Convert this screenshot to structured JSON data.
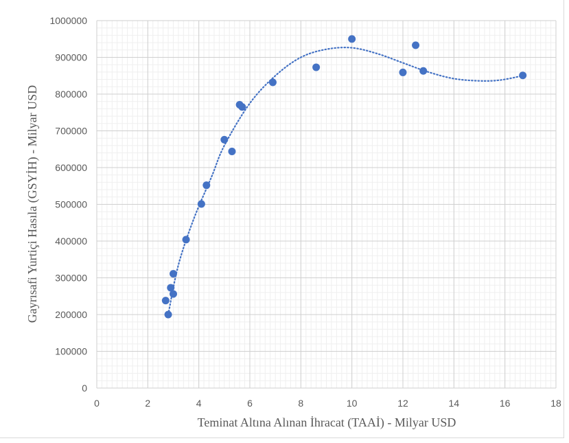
{
  "chart_data": {
    "type": "scatter",
    "xlabel": "Teminat Altına Alınan İhracat (TAAİ) - Milyar USD",
    "ylabel": "Gayrısafi Yurtiçi Hasıla (GSYİH) - Milyar USD",
    "xlim": [
      0,
      18
    ],
    "ylim": [
      0,
      1000000
    ],
    "x_ticks": [
      "0",
      "2",
      "4",
      "6",
      "8",
      "10",
      "12",
      "14",
      "16",
      "18"
    ],
    "y_ticks": [
      "0",
      "100000",
      "200000",
      "300000",
      "400000",
      "500000",
      "600000",
      "700000",
      "800000",
      "900000",
      "1000000"
    ],
    "grid": "major and minor",
    "legend": "none",
    "marker_color": "#4472c4",
    "trendline": {
      "type": "polynomial",
      "style": "dotted",
      "color": "#4472c4"
    },
    "points": [
      {
        "x": 2.7,
        "y": 238000
      },
      {
        "x": 2.8,
        "y": 200000
      },
      {
        "x": 2.9,
        "y": 273000
      },
      {
        "x": 3.0,
        "y": 311000
      },
      {
        "x": 3.0,
        "y": 256000
      },
      {
        "x": 3.5,
        "y": 404000
      },
      {
        "x": 4.1,
        "y": 501000
      },
      {
        "x": 4.3,
        "y": 552000
      },
      {
        "x": 5.0,
        "y": 676000
      },
      {
        "x": 5.3,
        "y": 644000
      },
      {
        "x": 5.6,
        "y": 771000
      },
      {
        "x": 5.7,
        "y": 765000
      },
      {
        "x": 6.9,
        "y": 832000
      },
      {
        "x": 8.6,
        "y": 873000
      },
      {
        "x": 10.0,
        "y": 950000
      },
      {
        "x": 12.0,
        "y": 859000
      },
      {
        "x": 12.5,
        "y": 933000
      },
      {
        "x": 12.8,
        "y": 863000
      },
      {
        "x": 16.7,
        "y": 851000
      }
    ],
    "trend_points": [
      [
        2.8,
        200000
      ],
      [
        3.2,
        335000
      ],
      [
        3.8,
        460000
      ],
      [
        4.5,
        575000
      ],
      [
        5.0,
        660000
      ],
      [
        6.0,
        775000
      ],
      [
        7.0,
        850000
      ],
      [
        8.0,
        900000
      ],
      [
        9.0,
        922000
      ],
      [
        10.0,
        926000
      ],
      [
        11.0,
        910000
      ],
      [
        12.0,
        885000
      ],
      [
        13.0,
        860000
      ],
      [
        14.0,
        842000
      ],
      [
        15.0,
        836000
      ],
      [
        15.8,
        838000
      ],
      [
        16.7,
        850000
      ]
    ]
  }
}
